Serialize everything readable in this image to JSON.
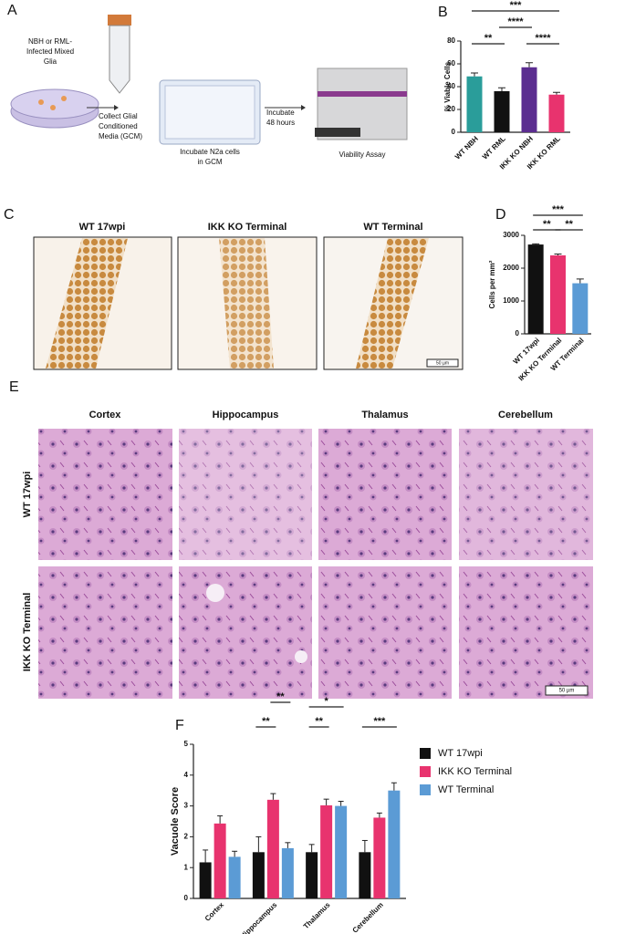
{
  "panel_labels": [
    "A",
    "B",
    "C",
    "D",
    "E",
    "F"
  ],
  "diagram": {
    "dish_label": [
      "NBH or RML-",
      "Infected Mixed",
      "Glia"
    ],
    "step1": [
      "Collect Glial",
      "Conditioned",
      "Media (GCM)"
    ],
    "plate_label": [
      "Incubate N2a cells",
      "in GCM"
    ],
    "step2": [
      "Incubate",
      "48 hours"
    ],
    "machine_label": [
      "Viability Assay"
    ]
  },
  "micrographs_c": {
    "titles": [
      "WT 17wpi",
      "IKK KO Terminal",
      "WT Terminal"
    ],
    "scale_bar": "50 µm"
  },
  "micrographs_e": {
    "columns": [
      "Cortex",
      "Hippocampus",
      "Thalamus",
      "Cerebellum"
    ],
    "rows": [
      "WT 17wpi",
      "IKK KO Terminal"
    ],
    "scale_bar": "50 µm"
  },
  "chart_data": [
    {
      "type": "bar",
      "y_label": "% Viable Cells",
      "categories": [
        "WT NBH",
        "WT RML",
        "IKK KO NBH",
        "IKK KO RML"
      ],
      "values": [
        49,
        36,
        57,
        33
      ],
      "errors": [
        3,
        3,
        4,
        2
      ],
      "colors": [
        "#2a9d9a",
        "#111111",
        "#5b2d90",
        "#e8336e"
      ],
      "ylim": [
        0,
        80
      ],
      "yticks": [
        0,
        20,
        40,
        60,
        80
      ],
      "annotations": [
        {
          "text": "**",
          "between": [
            "WT NBH",
            "WT RML"
          ]
        },
        {
          "text": "****",
          "between": [
            "IKK KO NBH",
            "IKK KO RML"
          ]
        },
        {
          "text": "****",
          "between": [
            "WT RML",
            "IKK KO NBH"
          ]
        },
        {
          "text": "***",
          "between": [
            "WT NBH",
            "IKK KO RML"
          ]
        }
      ]
    },
    {
      "type": "bar",
      "y_label": "Cells per mm²",
      "categories": [
        "WT 17wpi",
        "IKK KO Terminal",
        "WT Terminal"
      ],
      "values": [
        2720,
        2390,
        1540
      ],
      "errors": [
        20,
        40,
        130
      ],
      "colors": [
        "#111111",
        "#e8336e",
        "#5b9bd5"
      ],
      "ylim": [
        0,
        3000
      ],
      "yticks": [
        0,
        1000,
        2000,
        3000
      ],
      "annotations": [
        {
          "text": "**",
          "between": [
            "WT 17wpi",
            "IKK KO Terminal"
          ]
        },
        {
          "text": "**",
          "between": [
            "IKK KO Terminal",
            "WT Terminal"
          ]
        },
        {
          "text": "***",
          "between": [
            "WT 17wpi",
            "WT Terminal"
          ]
        }
      ]
    },
    {
      "type": "bar",
      "y_label": "Vacuole Score",
      "categories": [
        "Cortex",
        "Hippocampus",
        "Thalamus",
        "Cerebellum"
      ],
      "series": [
        {
          "name": "WT 17wpi",
          "color": "#111111",
          "values": [
            1.17,
            1.5,
            1.5,
            1.5
          ],
          "errors": [
            0.4,
            0.5,
            0.25,
            0.38
          ]
        },
        {
          "name": "IKK KO Terminal",
          "color": "#e8336e",
          "values": [
            2.43,
            3.2,
            3.02,
            2.62
          ],
          "errors": [
            0.25,
            0.2,
            0.2,
            0.15
          ]
        },
        {
          "name": "WT Terminal",
          "color": "#5b9bd5",
          "values": [
            1.35,
            1.63,
            3.0,
            3.5
          ],
          "errors": [
            0.18,
            0.18,
            0.15,
            0.25
          ]
        }
      ],
      "ylim": [
        0,
        5
      ],
      "yticks": [
        0,
        1,
        2,
        3,
        4,
        5
      ],
      "legend": "right",
      "annotations": [
        {
          "text": "**",
          "category": "Hippocampus",
          "between": [
            "WT 17wpi",
            "IKK KO Terminal"
          ]
        },
        {
          "text": "**",
          "category": "Hippocampus",
          "between": [
            "IKK KO Terminal",
            "WT Terminal"
          ]
        },
        {
          "text": "**",
          "category": "Thalamus",
          "between": [
            "WT 17wpi",
            "IKK KO Terminal"
          ]
        },
        {
          "text": "*",
          "category": "Thalamus",
          "between": [
            "WT 17wpi",
            "WT Terminal"
          ]
        },
        {
          "text": "***",
          "category": "Cerebellum",
          "between": [
            "WT 17wpi",
            "WT Terminal"
          ]
        }
      ]
    }
  ]
}
